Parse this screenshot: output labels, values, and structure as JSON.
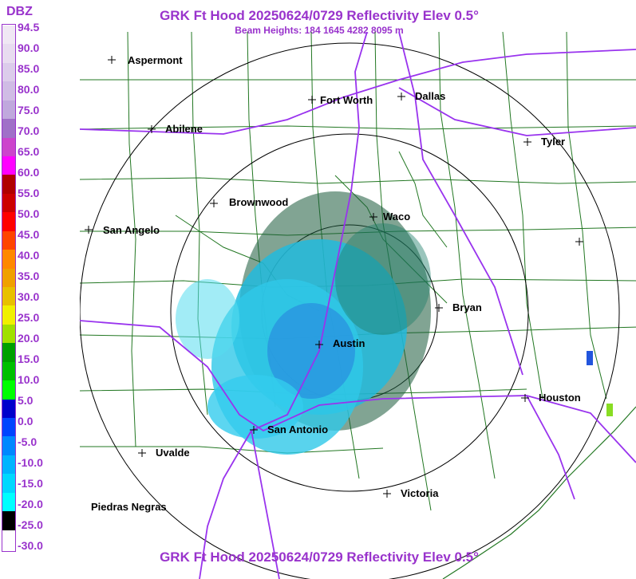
{
  "title": "GRK Ft Hood 20250624/0729 Reflectivity Elev 0.5°",
  "subtitle": "Beam Heights: 184 1645 4282 8095 m",
  "legend": {
    "title": "DBZ",
    "labels": [
      "94.5",
      "90.0",
      "85.0",
      "80.0",
      "75.0",
      "70.0",
      "65.0",
      "60.0",
      "55.0",
      "50.0",
      "45.0",
      "40.0",
      "35.0",
      "30.0",
      "25.0",
      "20.0",
      "15.0",
      "10.0",
      "5.0",
      "0.0",
      "-5.0",
      "-10.0",
      "-15.0",
      "-20.0",
      "-25.0",
      "-30.0"
    ],
    "colors": [
      "#f0e8f4",
      "#e8dcf0",
      "#dccceb",
      "#d0bce5",
      "#c0a8dd",
      "#a070c8",
      "#cc44cc",
      "#ff00ff",
      "#b00000",
      "#cc0000",
      "#ff0000",
      "#ff4400",
      "#ff8800",
      "#f0a000",
      "#e8c000",
      "#f0f000",
      "#a0e000",
      "#00a000",
      "#00c000",
      "#00ff00",
      "#0000cc",
      "#0044ff",
      "#0088ff",
      "#00b4ff",
      "#00d8ff",
      "#00ffff",
      "#000000",
      "#ffffff"
    ]
  },
  "cities": [
    {
      "name": "Aspermont"
    },
    {
      "name": "Fort Worth"
    },
    {
      "name": "Dallas"
    },
    {
      "name": "Abilene"
    },
    {
      "name": "Tyler"
    },
    {
      "name": "Brownwood"
    },
    {
      "name": "Waco"
    },
    {
      "name": "San Angelo"
    },
    {
      "name": "Bryan"
    },
    {
      "name": "Austin"
    },
    {
      "name": "Houston"
    },
    {
      "name": "San Antonio"
    },
    {
      "name": "Uvalde"
    },
    {
      "name": "Victoria"
    },
    {
      "name": "Piedras Negras"
    }
  ],
  "colors": {
    "title": "#9933cc",
    "highways": "#9933ee",
    "counties": "#227722",
    "rings": "#000000"
  }
}
